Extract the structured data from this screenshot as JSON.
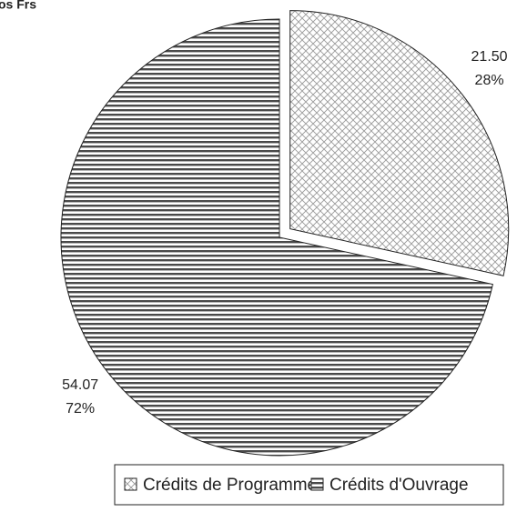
{
  "chart_data": {
    "type": "pie",
    "title": "os Frs",
    "categories": [
      "Crédits de Programme",
      "Crédits d'Ouvrage"
    ],
    "values": [
      21.5,
      54.07
    ],
    "value_labels": [
      "21.50",
      "54.07"
    ],
    "percent_labels": [
      "28%",
      "72%"
    ],
    "colors": [
      "#9a9a9a",
      "#4a4a4a"
    ],
    "exploded": [
      true,
      false
    ],
    "legend": "bottom"
  }
}
